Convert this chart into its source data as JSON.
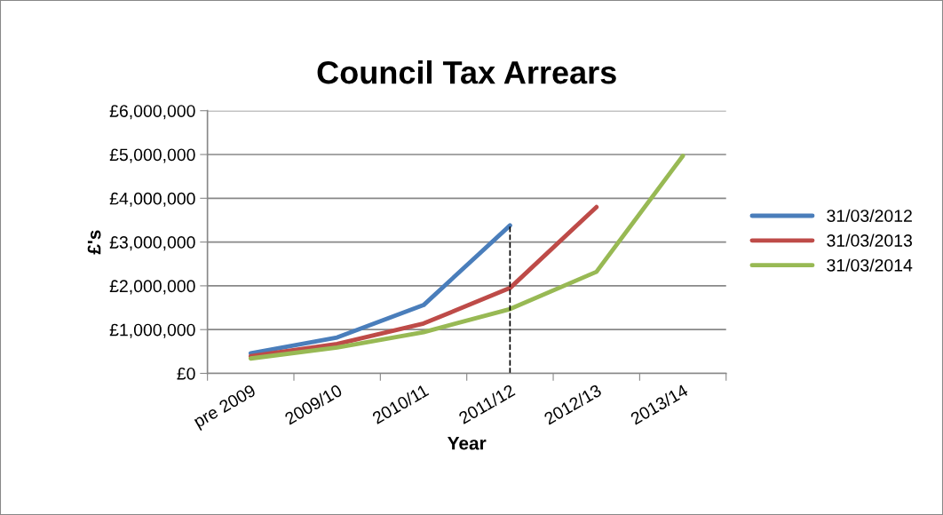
{
  "chart_data": {
    "type": "line",
    "title": "Council Tax Arrears",
    "xlabel": "Year",
    "ylabel": "£'s",
    "categories": [
      "pre 2009",
      "2009/10",
      "2010/11",
      "2011/12",
      "2012/13",
      "2013/14"
    ],
    "series": [
      {
        "name": "31/03/2012",
        "color": "#4a7ebb",
        "values": [
          460000,
          820000,
          1560000,
          3380000,
          null,
          null
        ]
      },
      {
        "name": "31/03/2013",
        "color": "#be4b48",
        "values": [
          390000,
          670000,
          1140000,
          1950000,
          3800000,
          null
        ]
      },
      {
        "name": "31/03/2014",
        "color": "#98b954",
        "values": [
          340000,
          590000,
          940000,
          1470000,
          2320000,
          4970000
        ]
      }
    ],
    "ylim": [
      0,
      6000000
    ],
    "yticks": [
      {
        "value": 0,
        "label": "£0"
      },
      {
        "value": 1000000,
        "label": "£1,000,000"
      },
      {
        "value": 2000000,
        "label": "£2,000,000"
      },
      {
        "value": 3000000,
        "label": "£3,000,000"
      },
      {
        "value": 4000000,
        "label": "£4,000,000"
      },
      {
        "value": 5000000,
        "label": "£5,000,000"
      },
      {
        "value": 6000000,
        "label": "£6,000,000"
      }
    ],
    "ref_lines": [
      {
        "axis": "x",
        "value": "2011/12",
        "color": "#000000",
        "line_style": "dashed"
      }
    ],
    "grid": "y",
    "legend": "right",
    "marker": "none",
    "line_style": "solid"
  }
}
